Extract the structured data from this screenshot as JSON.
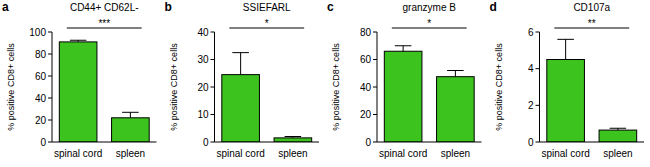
{
  "chart_data": [
    {
      "type": "bar",
      "panel_label": "a",
      "title": "CD44+ CD62L-",
      "y_label": "% positive CD8+ cells",
      "categories": [
        "spinal cord",
        "spleen"
      ],
      "values": [
        91,
        22
      ],
      "errors": [
        1.5,
        5
      ],
      "color": "#3cc31e",
      "ylim": [
        0,
        100
      ],
      "yticks": [
        0,
        20,
        40,
        60,
        80,
        100
      ],
      "annotation": "***"
    },
    {
      "type": "bar",
      "panel_label": "b",
      "title": "SSIEFARL",
      "y_label": "% positive CD8+ cells",
      "categories": [
        "spinal cord",
        "spleen"
      ],
      "values": [
        24.5,
        1.5
      ],
      "errors": [
        8,
        0.5
      ],
      "color": "#3cc31e",
      "ylim": [
        0,
        40
      ],
      "yticks": [
        0,
        10,
        20,
        30,
        40
      ],
      "annotation": "*"
    },
    {
      "type": "bar",
      "panel_label": "c",
      "title": "granzyme B",
      "y_label": "% positive CD8+ cells",
      "categories": [
        "spinal cord",
        "spleen"
      ],
      "values": [
        66,
        47.5
      ],
      "errors": [
        4,
        4.5
      ],
      "color": "#3cc31e",
      "ylim": [
        0,
        80
      ],
      "yticks": [
        0,
        20,
        40,
        60,
        80
      ],
      "annotation": "*"
    },
    {
      "type": "bar",
      "panel_label": "d",
      "title": "CD107a",
      "y_label": "% positive CD8+ cells",
      "categories": [
        "spinal cord",
        "spleen"
      ],
      "values": [
        4.5,
        0.65
      ],
      "errors": [
        1.1,
        0.1
      ],
      "color": "#3cc31e",
      "ylim": [
        0,
        6
      ],
      "yticks": [
        0,
        2,
        4,
        6
      ],
      "annotation": "**"
    }
  ]
}
